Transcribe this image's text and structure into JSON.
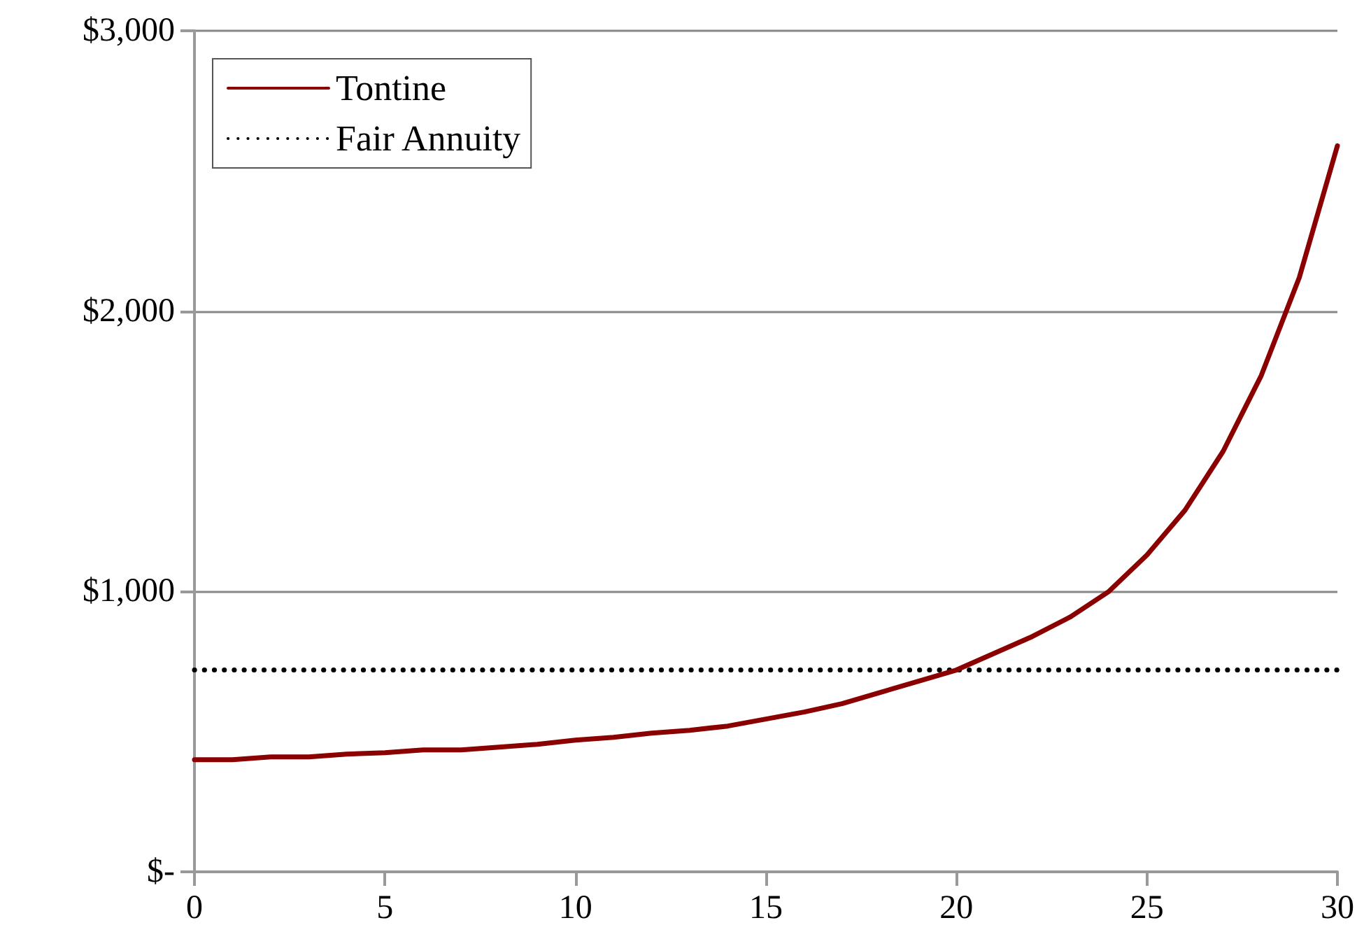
{
  "chart_data": {
    "type": "line",
    "x": [
      0,
      1,
      2,
      3,
      4,
      5,
      6,
      7,
      8,
      9,
      10,
      11,
      12,
      13,
      14,
      15,
      16,
      17,
      18,
      19,
      20,
      21,
      22,
      23,
      24,
      25,
      26,
      27,
      28,
      29,
      30
    ],
    "series": [
      {
        "name": "Tontine",
        "color": "#8b0000",
        "line_style": "solid",
        "values": [
          400,
          400,
          410,
          410,
          420,
          425,
          435,
          435,
          445,
          455,
          470,
          480,
          495,
          505,
          520,
          545,
          570,
          600,
          640,
          680,
          720,
          780,
          840,
          910,
          1000,
          1130,
          1290,
          1500,
          1770,
          2120,
          2590
        ]
      },
      {
        "name": "Fair Annuity",
        "color": "#000000",
        "line_style": "dotted",
        "x": [
          0,
          30
        ],
        "values": [
          720,
          720
        ]
      }
    ],
    "xlim": [
      0,
      30
    ],
    "xticks": [
      0,
      5,
      10,
      15,
      20,
      25,
      30
    ],
    "ylim": [
      0,
      3000
    ],
    "yticks": [
      {
        "value": 0,
        "label": "$-"
      },
      {
        "value": 1000,
        "label": "$1,000"
      },
      {
        "value": 2000,
        "label": "$2,000"
      },
      {
        "value": 3000,
        "label": "$3,000"
      }
    ],
    "grid": "y",
    "legend": "top left",
    "marker": "none"
  }
}
